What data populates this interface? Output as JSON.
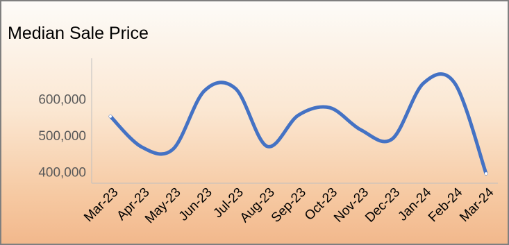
{
  "chart_data": {
    "type": "line",
    "title": "Median Sale Price",
    "xlabel": "",
    "ylabel": "",
    "categories": [
      "Mar-23",
      "Apr-23",
      "May-23",
      "Jun-23",
      "Jul-23",
      "Aug-23",
      "Sep-23",
      "Oct-23",
      "Nov-23",
      "Dec-23",
      "Jan-24",
      "Feb-24",
      "Mar-24"
    ],
    "series": [
      {
        "values": [
          552000,
          468000,
          462000,
          622000,
          628000,
          470000,
          555000,
          576000,
          515000,
          490000,
          643000,
          643000,
          395000
        ]
      }
    ],
    "yticks": [
      400000,
      500000,
      600000
    ],
    "ytick_labels": [
      "400,000",
      "500,000",
      "600,000"
    ],
    "ylim": [
      380000,
      700000
    ],
    "grid": false,
    "line_color": "#4472c4",
    "smooth": true
  }
}
